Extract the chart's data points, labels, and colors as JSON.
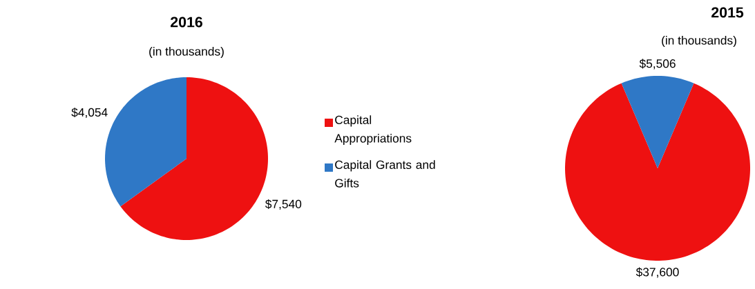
{
  "chart_data": [
    {
      "type": "pie",
      "title": "2016",
      "subtitle": "(in thousands)",
      "categories": [
        "Capital Appropriations",
        "Capital Grants and Gifts"
      ],
      "values": [
        7540,
        4054
      ],
      "colors": [
        "#ee1111",
        "#2f78c6"
      ],
      "value_labels": [
        "$7,540",
        "$4,054"
      ],
      "legend": "right"
    },
    {
      "type": "pie",
      "title": "2015",
      "subtitle": "(in thousands)",
      "values": [
        37600,
        5506
      ],
      "colors": [
        "#ee1111",
        "#2f78c6"
      ],
      "value_labels": [
        "$37,600",
        "$5,506"
      ],
      "legend": false
    }
  ]
}
